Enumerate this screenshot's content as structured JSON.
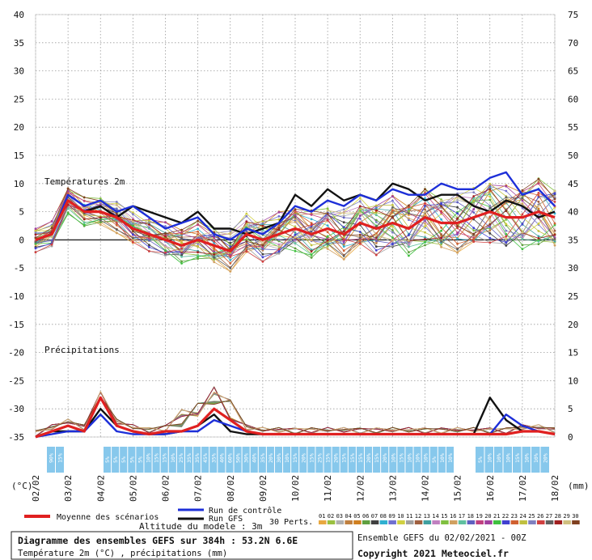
{
  "chart_data": {
    "type": "line",
    "title": "Diagramme des ensembles GEFS sur 384h : 53.2N 6.6E",
    "subtitle": "Température 2m (°C) , précipitations (mm)",
    "left_axis": {
      "label": "(°C)",
      "ticks": [
        40,
        35,
        30,
        25,
        20,
        15,
        10,
        5,
        0,
        -5,
        -10,
        -15,
        -20,
        -25,
        -30,
        -35
      ],
      "ylim": [
        -35,
        40
      ]
    },
    "right_axis": {
      "label": "(mm)",
      "ticks": [
        75,
        70,
        65,
        60,
        55,
        50,
        45,
        40,
        35,
        30,
        25,
        20,
        15,
        10,
        5,
        0
      ],
      "ylim": [
        0,
        75
      ]
    },
    "x_ticks": [
      "02/02",
      "03/02",
      "04/02",
      "05/02",
      "06/02",
      "07/02",
      "08/02",
      "09/02",
      "10/02",
      "11/02",
      "12/02",
      "13/02",
      "14/02",
      "15/02",
      "16/02",
      "17/02",
      "18/02"
    ],
    "temp_label": "Températures 2m",
    "precip_label": "Précipitations",
    "altitude": "Altitude du modele : 3m",
    "grid": true,
    "series": [
      {
        "name": "Moyenne des scénarios",
        "color": "#e02020",
        "temperature": [
          0,
          1,
          7,
          5,
          5,
          4,
          2,
          1,
          0,
          -1,
          0,
          -1,
          -2,
          1,
          0,
          1,
          2,
          1,
          2,
          1,
          3,
          2,
          3,
          2,
          4,
          3,
          3,
          4,
          5,
          4,
          4,
          5,
          4
        ],
        "precipitation": [
          0,
          1,
          2,
          1,
          7,
          2,
          1,
          0.5,
          1,
          1,
          2,
          5,
          3,
          1,
          0.5,
          0.5,
          0.5,
          0.5,
          0.5,
          0.5,
          0.5,
          0.5,
          0.5,
          0.5,
          0.5,
          0.5,
          0.5,
          0.5,
          0.5,
          0.5,
          1,
          1,
          0.5
        ]
      },
      {
        "name": "Run de contrôle",
        "color": "#1d2fd8",
        "temperature": [
          0,
          1,
          8,
          6,
          7,
          5,
          6,
          4,
          2,
          3,
          4,
          1,
          0,
          2,
          1,
          3,
          6,
          5,
          7,
          6,
          8,
          7,
          9,
          8,
          8,
          10,
          9,
          9,
          11,
          12,
          8,
          9,
          6
        ],
        "precipitation": [
          0,
          0.5,
          1,
          1,
          4,
          1,
          0.5,
          0.5,
          0.5,
          1,
          1,
          3,
          2,
          1,
          0.5,
          0.5,
          0.5,
          0.5,
          0.5,
          0.5,
          0.5,
          0.5,
          0.5,
          0.5,
          0.5,
          0.5,
          0.5,
          0.5,
          0.5,
          4,
          2,
          1,
          0.5
        ]
      },
      {
        "name": "Run GFS",
        "color": "#111111",
        "temperature": [
          0,
          1,
          7,
          5,
          6,
          4,
          6,
          5,
          4,
          3,
          5,
          2,
          2,
          1,
          2,
          3,
          8,
          6,
          9,
          7,
          8,
          7,
          10,
          9,
          7,
          8,
          8,
          6,
          5,
          7,
          6,
          4,
          5
        ],
        "precipitation": [
          0,
          1,
          1,
          1,
          5,
          2,
          1,
          0.5,
          0.5,
          1,
          2,
          4,
          1,
          0.5,
          0.5,
          0.5,
          0.5,
          0.5,
          0.5,
          0.5,
          0.5,
          0.5,
          0.5,
          0.5,
          0.5,
          0.5,
          0.5,
          0.5,
          7,
          3,
          1,
          1,
          0.5
        ]
      }
    ],
    "perturbation_count": "30 Perts.",
    "perturbation_ids": [
      "01",
      "02",
      "03",
      "04",
      "05",
      "06",
      "07",
      "08",
      "09",
      "10",
      "11",
      "12",
      "13",
      "14",
      "15",
      "16",
      "17",
      "18",
      "19",
      "20",
      "21",
      "22",
      "23",
      "24",
      "25",
      "26",
      "27",
      "28",
      "29",
      "30"
    ],
    "perturbation_colors": [
      "#e8a840",
      "#9ac040",
      "#b0b0b0",
      "#c08040",
      "#d08020",
      "#60a040",
      "#404040",
      "#30b0d0",
      "#7070d0",
      "#d0d040",
      "#a0a0a0",
      "#a06040",
      "#40a0a0",
      "#c080c0",
      "#80c040",
      "#d0a060",
      "#60c0a0",
      "#6060c0",
      "#c04080",
      "#a040a0",
      "#40c040",
      "#4040d0",
      "#d06030",
      "#c0c040",
      "#8080c0",
      "#d04040",
      "#606060",
      "#a02020",
      "#d0c080",
      "#804020"
    ],
    "precip_probability_row1": [
      "90%",
      "15%"
    ],
    "precip_probability_row2": [
      "5%",
      "5%",
      "5%",
      "5%",
      "5%",
      "10%",
      "15%",
      "15%",
      "10%",
      "25%",
      "35%",
      "35%",
      "45%",
      "35%",
      "40%",
      "60%",
      "50%",
      "30%",
      "40%",
      "35%",
      "20%",
      "30%",
      "10%",
      "15%",
      "20%",
      "15%",
      "25%",
      "15%",
      "20%",
      "15%",
      "15%",
      "15%",
      "20%",
      "15%",
      "20%",
      "10%",
      "15%",
      "10%",
      "10%",
      "10%",
      "5%",
      "10%",
      "10%"
    ],
    "precip_probability_row3": [
      "5%",
      "10%",
      "10%",
      "10%",
      "15%",
      "10%",
      "10%",
      "20%"
    ]
  },
  "legend": {
    "mean_label": "Moyenne des scénarios",
    "control_label": "Run de contrôle",
    "gfs_label": "Run GFS",
    "perts_label": "30 Perts."
  },
  "footer": {
    "title": "Diagramme des ensembles GEFS sur 384h : 53.2N 6.6E",
    "subtitle": "Température 2m (°C) , précipitations (mm)",
    "run_info": "Ensemble GEFS du 02/02/2021 - 00Z",
    "copyright": "Copyright 2021 Meteociel.fr"
  }
}
